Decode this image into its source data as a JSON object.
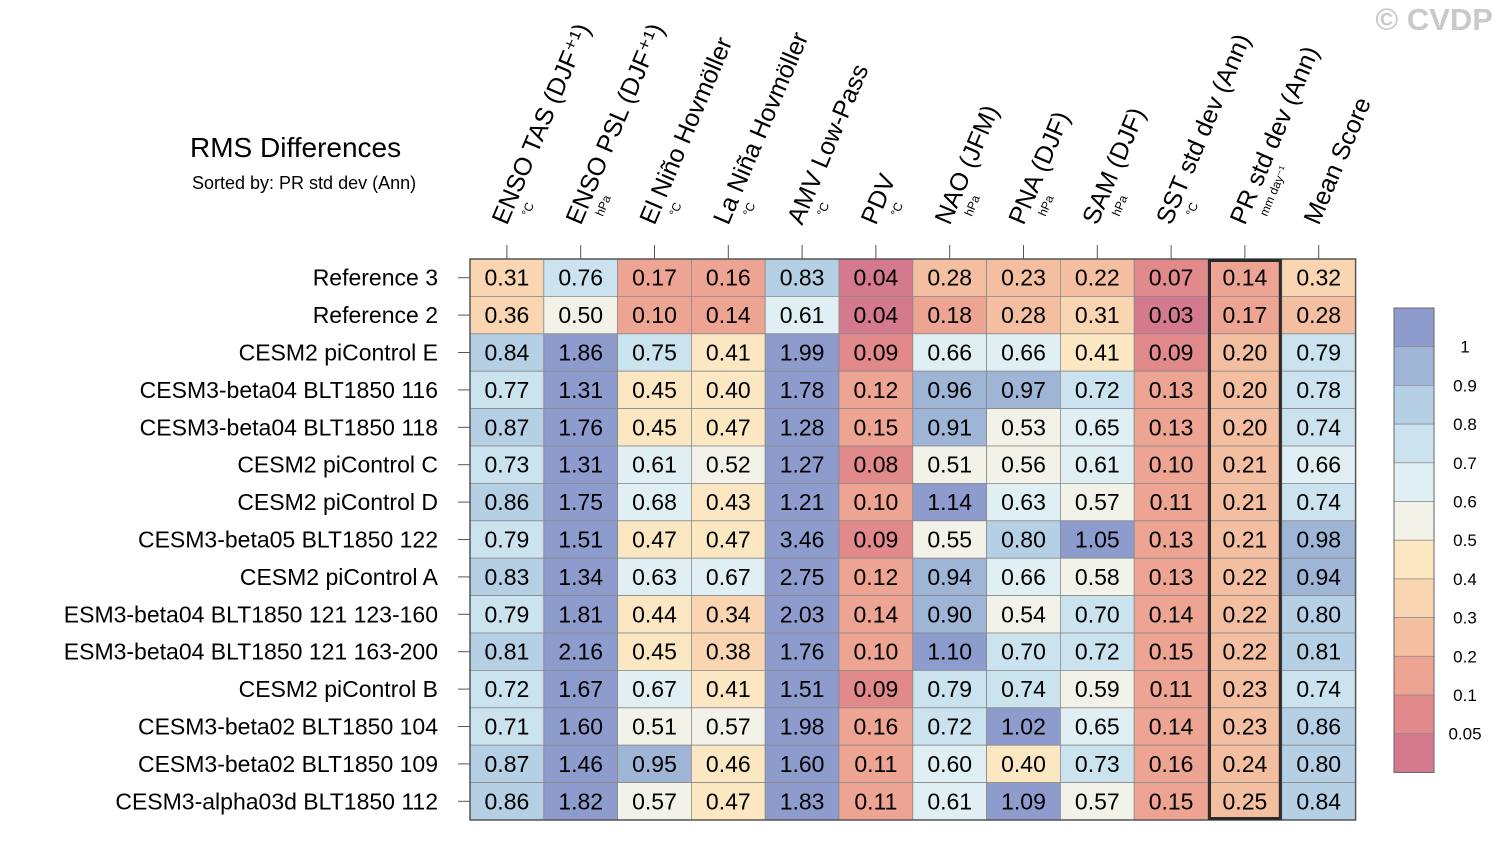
{
  "watermark": "© CVDP",
  "chart_data": {
    "type": "heatmap",
    "title": "RMS Differences",
    "subtitle": "Sorted by: PR std dev (Ann)",
    "columns": [
      {
        "label": "ENSO TAS (DJF⁺¹)",
        "unit": "°C"
      },
      {
        "label": "ENSO PSL (DJF⁺¹)",
        "unit": "hPa"
      },
      {
        "label": "El Niño Hovmöller",
        "unit": "°C"
      },
      {
        "label": "La Niña Hovmöller",
        "unit": "°C"
      },
      {
        "label": "AMV Low-Pass",
        "unit": "°C"
      },
      {
        "label": "PDV",
        "unit": "°C"
      },
      {
        "label": "NAO (JFM)",
        "unit": "hPa"
      },
      {
        "label": "PNA (DJF)",
        "unit": "hPa"
      },
      {
        "label": "SAM (DJF)",
        "unit": "hPa"
      },
      {
        "label": "SST std dev (Ann)",
        "unit": "°C"
      },
      {
        "label": "PR std dev (Ann)",
        "unit": "mm day⁻¹"
      },
      {
        "label": "Mean Score",
        "unit": ""
      }
    ],
    "highlighted_column": "PR std dev (Ann)",
    "rows": [
      "Reference 3",
      "Reference 2",
      "CESM2 piControl E",
      "CESM3-beta04 BLT1850 116",
      "CESM3-beta04 BLT1850 118",
      "CESM2 piControl C",
      "CESM2 piControl D",
      "CESM3-beta05 BLT1850 122",
      "CESM2 piControl A",
      "ESM3-beta04 BLT1850 121 123-160",
      "ESM3-beta04 BLT1850 121 163-200",
      "CESM2 piControl B",
      "CESM3-beta02 BLT1850 104",
      "CESM3-beta02 BLT1850 109",
      "CESM3-alpha03d BLT1850 112"
    ],
    "values": [
      [
        "0.31",
        "0.76",
        "0.17",
        "0.16",
        "0.83",
        "0.04",
        "0.28",
        "0.23",
        "0.22",
        "0.07",
        "0.14",
        "0.32"
      ],
      [
        "0.36",
        "0.50",
        "0.10",
        "0.14",
        "0.61",
        "0.04",
        "0.18",
        "0.28",
        "0.31",
        "0.03",
        "0.17",
        "0.28"
      ],
      [
        "0.84",
        "1.86",
        "0.75",
        "0.41",
        "1.99",
        "0.09",
        "0.66",
        "0.66",
        "0.41",
        "0.09",
        "0.20",
        "0.79"
      ],
      [
        "0.77",
        "1.31",
        "0.45",
        "0.40",
        "1.78",
        "0.12",
        "0.96",
        "0.97",
        "0.72",
        "0.13",
        "0.20",
        "0.78"
      ],
      [
        "0.87",
        "1.76",
        "0.45",
        "0.47",
        "1.28",
        "0.15",
        "0.91",
        "0.53",
        "0.65",
        "0.13",
        "0.20",
        "0.74"
      ],
      [
        "0.73",
        "1.31",
        "0.61",
        "0.52",
        "1.27",
        "0.08",
        "0.51",
        "0.56",
        "0.61",
        "0.10",
        "0.21",
        "0.66"
      ],
      [
        "0.86",
        "1.75",
        "0.68",
        "0.43",
        "1.21",
        "0.10",
        "1.14",
        "0.63",
        "0.57",
        "0.11",
        "0.21",
        "0.74"
      ],
      [
        "0.79",
        "1.51",
        "0.47",
        "0.47",
        "3.46",
        "0.09",
        "0.55",
        "0.80",
        "1.05",
        "0.13",
        "0.21",
        "0.98"
      ],
      [
        "0.83",
        "1.34",
        "0.63",
        "0.67",
        "2.75",
        "0.12",
        "0.94",
        "0.66",
        "0.58",
        "0.13",
        "0.22",
        "0.94"
      ],
      [
        "0.79",
        "1.81",
        "0.44",
        "0.34",
        "2.03",
        "0.14",
        "0.90",
        "0.54",
        "0.70",
        "0.14",
        "0.22",
        "0.80"
      ],
      [
        "0.81",
        "2.16",
        "0.45",
        "0.38",
        "1.76",
        "0.10",
        "1.10",
        "0.70",
        "0.72",
        "0.15",
        "0.22",
        "0.81"
      ],
      [
        "0.72",
        "1.67",
        "0.67",
        "0.41",
        "1.51",
        "0.09",
        "0.79",
        "0.74",
        "0.59",
        "0.11",
        "0.23",
        "0.74"
      ],
      [
        "0.71",
        "1.60",
        "0.51",
        "0.57",
        "1.98",
        "0.16",
        "0.72",
        "1.02",
        "0.65",
        "0.14",
        "0.23",
        "0.86"
      ],
      [
        "0.87",
        "1.46",
        "0.95",
        "0.46",
        "1.60",
        "0.11",
        "0.60",
        "0.40",
        "0.73",
        "0.16",
        "0.24",
        "0.80"
      ],
      [
        "0.86",
        "1.82",
        "0.57",
        "0.47",
        "1.83",
        "0.11",
        "0.61",
        "1.09",
        "0.57",
        "0.15",
        "0.25",
        "0.84"
      ]
    ],
    "colorbar": {
      "labels": [
        "1",
        "0.9",
        "0.8",
        "0.7",
        "0.6",
        "0.5",
        "0.4",
        "0.3",
        "0.2",
        "0.1",
        "0.05"
      ],
      "thresholds": [
        0.05,
        0.1,
        0.2,
        0.3,
        0.4,
        0.5,
        0.6,
        0.7,
        0.8,
        0.9,
        1
      ],
      "colors": [
        "#d5798f",
        "#e1898b",
        "#eda492",
        "#f4bfa1",
        "#f9d6b1",
        "#fbe8c3",
        "#f3f2e8",
        "#e0eff3",
        "#cbe3ee",
        "#b5d0e4",
        "#9eb5d6",
        "#8d9ccd"
      ]
    },
    "grid": true
  }
}
